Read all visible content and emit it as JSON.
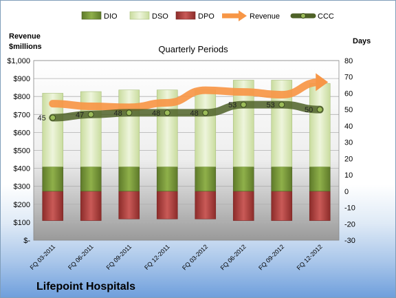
{
  "chart_data": {
    "type": "bar",
    "title": "Quarterly Periods",
    "company": "Lifepoint Hospitals",
    "left_axis_label": [
      "Revenue",
      "$millions"
    ],
    "right_axis_label": "Days",
    "left_ylim": [
      0,
      1000
    ],
    "left_ticks": [
      "$-",
      "$100",
      "$200",
      "$300",
      "$400",
      "$500",
      "$600",
      "$700",
      "$800",
      "$900",
      "$1,000"
    ],
    "right_ylim": [
      -30,
      80
    ],
    "right_ticks": [
      "-30",
      "-20",
      "-10",
      "0",
      "10",
      "20",
      "30",
      "40",
      "50",
      "60",
      "70",
      "80"
    ],
    "categories": [
      "FQ 03-2011",
      "FQ 06-2011",
      "FQ 09-2011",
      "FQ 12-2011",
      "FQ 03-2012",
      "FQ 06-2012",
      "FQ 09-2012",
      "FQ 12-2012"
    ],
    "legend": [
      "DIO",
      "DSO",
      "DPO",
      "Revenue",
      "CCC"
    ],
    "series": [
      {
        "name": "DIO",
        "axis": "right",
        "color": "#77933c",
        "values": [
          15,
          15,
          15,
          15,
          15,
          15,
          15,
          15
        ]
      },
      {
        "name": "DSO",
        "axis": "right",
        "color": "#d7e4bd",
        "values": [
          45,
          46,
          47,
          47,
          47,
          53,
          53,
          51
        ]
      },
      {
        "name": "DPO",
        "axis": "right",
        "color": "#c0504d",
        "values": [
          -18,
          -18,
          -17,
          -17,
          -17,
          -18,
          -18,
          -18
        ]
      },
      {
        "name": "Revenue",
        "axis": "left",
        "color": "#f79646",
        "values": [
          760,
          745,
          740,
          765,
          835,
          825,
          810,
          880
        ]
      },
      {
        "name": "CCC",
        "axis": "right",
        "color": "#4f6228",
        "values": [
          45,
          47,
          48,
          48,
          48,
          53,
          53,
          50
        ],
        "labels": [
          "45",
          "47",
          "48",
          "48",
          "48",
          "53",
          "53",
          "50"
        ]
      }
    ]
  }
}
